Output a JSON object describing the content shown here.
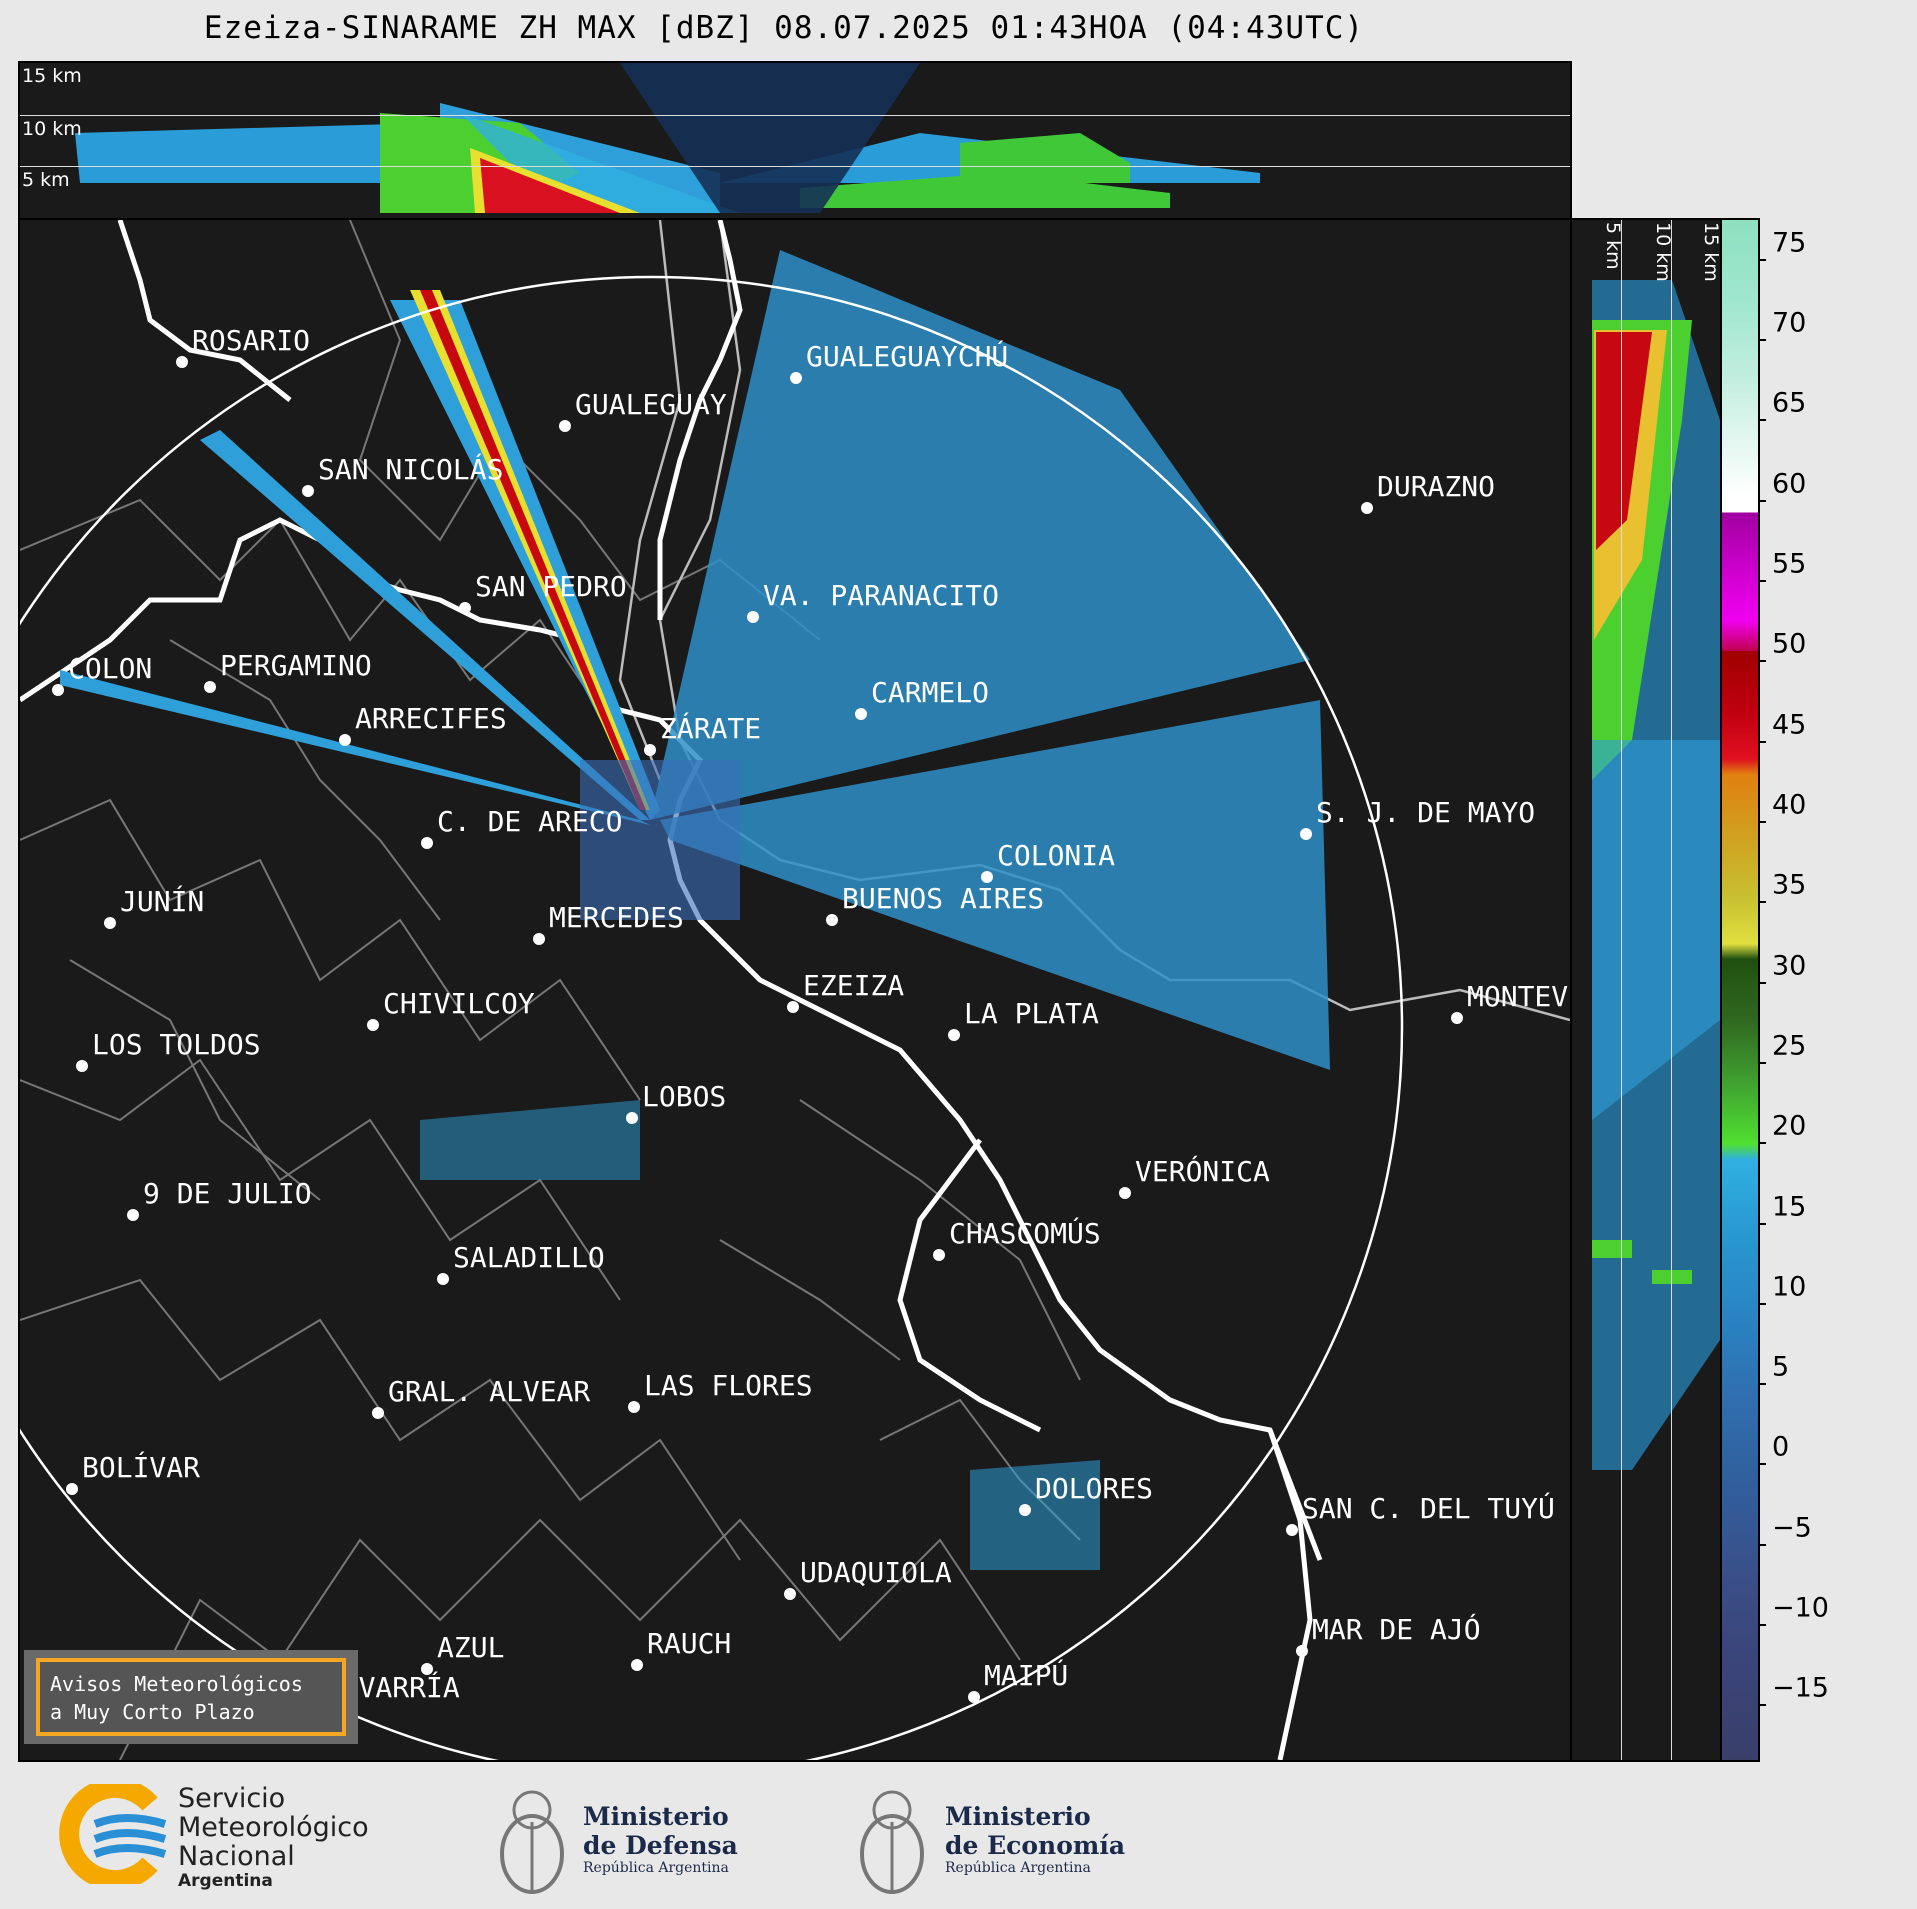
{
  "title": "Ezeiza-SINARAME ZH MAX [dBZ] 08.07.2025 01:43HOA (04:43UTC)",
  "top_panel": {
    "altitude_labels": [
      "15 km",
      "10 km",
      "5 km"
    ]
  },
  "right_panel": {
    "altitude_labels": [
      "5 km",
      "10 km",
      "15 km"
    ]
  },
  "colorbar": {
    "unit": "dBZ",
    "ticks": [
      "75",
      "70",
      "65",
      "60",
      "55",
      "50",
      "45",
      "40",
      "35",
      "30",
      "25",
      "20",
      "15",
      "10",
      "5",
      "0",
      "−5",
      "−10",
      "−15"
    ],
    "min": -20,
    "max": 76
  },
  "radar_site": "EZEIZA",
  "cities": [
    {
      "name": "ROSARIO"
    },
    {
      "name": "GUALEGUAYCHÚ"
    },
    {
      "name": "GUALEGUAY"
    },
    {
      "name": "SAN NICOLÁS"
    },
    {
      "name": "DURAZNO"
    },
    {
      "name": "SAN PEDRO"
    },
    {
      "name": "VA. PARANACITO"
    },
    {
      "name": "COLON"
    },
    {
      "name": "PERGAMINO"
    },
    {
      "name": "CARMELO"
    },
    {
      "name": "ARRECIFES"
    },
    {
      "name": "ZÁRATE"
    },
    {
      "name": "S. J. DE MAYO"
    },
    {
      "name": "C. DE ARECO"
    },
    {
      "name": "COLONIA"
    },
    {
      "name": "JUNÍN"
    },
    {
      "name": "BUENOS AIRES"
    },
    {
      "name": "MERCEDES"
    },
    {
      "name": "EZEIZA"
    },
    {
      "name": "MONTEVIDEO"
    },
    {
      "name": "CHIVILCOY"
    },
    {
      "name": "LA PLATA"
    },
    {
      "name": "LOS TOLDOS"
    },
    {
      "name": "LOBOS"
    },
    {
      "name": "VERÓNICA"
    },
    {
      "name": "9 DE JULIO"
    },
    {
      "name": "CHASCOMÚS"
    },
    {
      "name": "SALADILLO"
    },
    {
      "name": "GRAL. ALVEAR"
    },
    {
      "name": "LAS FLORES"
    },
    {
      "name": "BOLÍVAR"
    },
    {
      "name": "DOLORES"
    },
    {
      "name": "SAN C. DEL TUYÚ"
    },
    {
      "name": "UDAQUIOLA"
    },
    {
      "name": "MAR DE AJÓ"
    },
    {
      "name": "AZUL"
    },
    {
      "name": "RAUCH"
    },
    {
      "name": "OLAVARRÍA"
    },
    {
      "name": "MAIPÚ"
    }
  ],
  "avisos": {
    "line1": "Avisos Meteorológicos",
    "line2": "a Muy Corto Plazo"
  },
  "footer": {
    "smn": {
      "line1": "Servicio",
      "line2": "Meteorológico",
      "line3": "Nacional",
      "line4": "Argentina"
    },
    "defensa": {
      "line1": "Ministerio",
      "line2": "de Defensa",
      "line3": "República Argentina"
    },
    "economia": {
      "line1": "Ministerio",
      "line2": "de Economía",
      "line3": "República Argentina"
    }
  },
  "colors": {
    "background": "#1a1a1a",
    "range_ring": "#ffffff",
    "accent_orange": "#f5a623",
    "smn_blue": "#2b8fd6",
    "smn_yellow": "#f5a800"
  }
}
